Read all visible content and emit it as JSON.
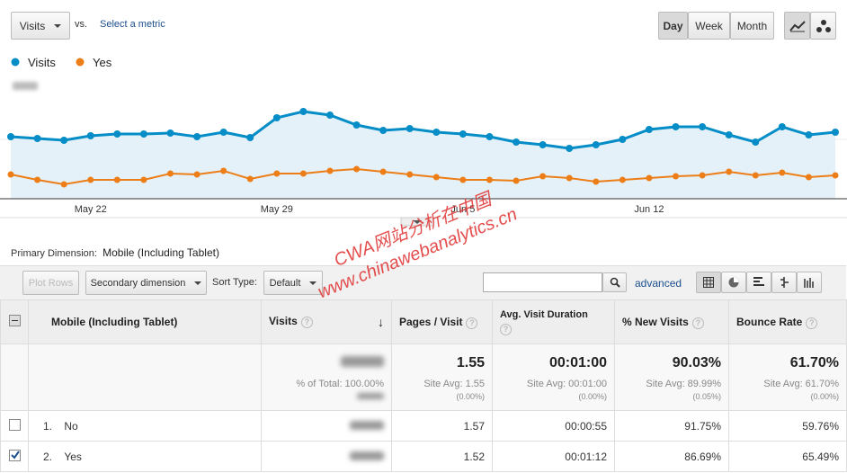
{
  "toolbar": {
    "metric": "Visits",
    "vs": "vs.",
    "select_metric": "Select a metric",
    "periods": [
      "Day",
      "Week",
      "Month"
    ]
  },
  "chart_data": {
    "type": "line",
    "categories": [
      null,
      null,
      null,
      "May 22",
      null,
      null,
      null,
      null,
      null,
      null,
      "May 29",
      null,
      null,
      null,
      null,
      null,
      null,
      "Jun 5",
      null,
      null,
      null,
      null,
      null,
      null,
      "Jun 12",
      null,
      null,
      null,
      null,
      null,
      null,
      null
    ],
    "series": [
      {
        "name": "Visits",
        "color": "#058dc7",
        "values": [
          69,
          67,
          65,
          70,
          72,
          72,
          73,
          69,
          74,
          68,
          90,
          97,
          93,
          82,
          76,
          78,
          74,
          72,
          69,
          63,
          60,
          56,
          60,
          66,
          77,
          80,
          80,
          71,
          63,
          80,
          71,
          74
        ]
      },
      {
        "name": "Yes",
        "color": "#ed7e17",
        "values": [
          27,
          21,
          16,
          21,
          21,
          21,
          28,
          27,
          31,
          22,
          28,
          28,
          31,
          33,
          30,
          27,
          24,
          21,
          21,
          20,
          25,
          23,
          19,
          21,
          23,
          25,
          26,
          30,
          26,
          29,
          24,
          26
        ]
      }
    ],
    "ylim": [
      0,
      133
    ]
  },
  "dimension_bar": {
    "label": "Primary Dimension:",
    "value": "Mobile (Including Tablet)"
  },
  "controls": {
    "plot_rows": "Plot Rows",
    "secondary": "Secondary dimension",
    "sort_label": "Sort Type:",
    "sort": "Default",
    "advanced": "advanced"
  },
  "watermark": [
    "CWA网站分析在中国",
    "www.chinawebanalytics.cn"
  ],
  "table": {
    "headers": [
      "Mobile (Including Tablet)",
      "Visits",
      "Pages / Visit",
      "Avg. Visit Duration",
      "% New Visits",
      "Bounce Rate"
    ],
    "totals": {
      "visits_note": "% of Total: 100.00%",
      "cells": [
        {
          "value": "1.55",
          "avg": "Site Avg: 1.55",
          "delta": "(0.00%)"
        },
        {
          "value": "00:01:00",
          "avg": "Site Avg: 00:01:00",
          "delta": "(0.00%)"
        },
        {
          "value": "90.03%",
          "avg": "Site Avg: 89.99%",
          "delta": "(0.05%)"
        },
        {
          "value": "61.70%",
          "avg": "Site Avg: 61.70%",
          "delta": "(0.00%)"
        }
      ]
    },
    "rows": [
      {
        "index": "1.",
        "name": "No",
        "cells": [
          "1.57",
          "00:00:55",
          "91.75%",
          "59.76%"
        ]
      },
      {
        "index": "2.",
        "name": "Yes",
        "cells": [
          "1.52",
          "00:01:12",
          "86.69%",
          "65.49%"
        ]
      }
    ]
  }
}
